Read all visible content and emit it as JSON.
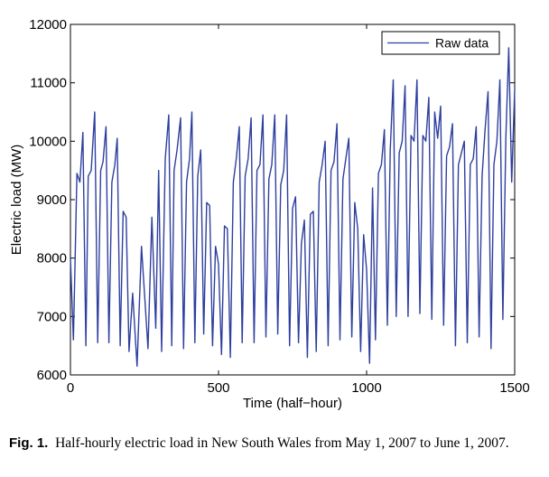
{
  "chart_data": {
    "type": "line",
    "title": "",
    "xlabel": "Time (half−hour)",
    "ylabel": "Electric load (MW)",
    "xlim": [
      0,
      1500
    ],
    "ylim": [
      6000,
      12000
    ],
    "x_ticks": [
      "0",
      "500",
      "1000",
      "1500"
    ],
    "y_ticks": [
      "6000",
      "7000",
      "8000",
      "9000",
      "10000",
      "11000",
      "12000"
    ],
    "grid": false,
    "legend_position": "top-right",
    "series": [
      {
        "name": "Raw data",
        "color": "#2e3f9e",
        "x": [
          0,
          10,
          22,
          32,
          42,
          52,
          60,
          70,
          82,
          92,
          102,
          110,
          120,
          130,
          140,
          150,
          158,
          168,
          178,
          188,
          198,
          210,
          225,
          240,
          250,
          262,
          275,
          288,
          298,
          308,
          320,
          332,
          342,
          350,
          360,
          372,
          382,
          392,
          402,
          410,
          420,
          430,
          440,
          450,
          460,
          470,
          480,
          490,
          500,
          510,
          520,
          530,
          540,
          550,
          560,
          570,
          580,
          590,
          600,
          610,
          620,
          630,
          640,
          650,
          660,
          670,
          680,
          690,
          700,
          710,
          720,
          730,
          740,
          750,
          760,
          770,
          780,
          790,
          800,
          810,
          820,
          830,
          840,
          850,
          860,
          870,
          880,
          890,
          900,
          910,
          920,
          930,
          940,
          950,
          960,
          970,
          980,
          990,
          1000,
          1010,
          1020,
          1030,
          1040,
          1050,
          1060,
          1070,
          1080,
          1090,
          1100,
          1110,
          1120,
          1130,
          1140,
          1150,
          1160,
          1170,
          1180,
          1190,
          1200,
          1210,
          1220,
          1230,
          1240,
          1250,
          1260,
          1270,
          1280,
          1290,
          1300,
          1310,
          1320,
          1330,
          1340,
          1350,
          1360,
          1370,
          1380,
          1390,
          1400,
          1410,
          1420,
          1430,
          1440,
          1450,
          1460,
          1470,
          1480,
          1490,
          1500
        ],
        "values": [
          8000,
          6600,
          9450,
          9300,
          10150,
          6500,
          9400,
          9500,
          10500,
          6550,
          9500,
          9650,
          10250,
          6550,
          9300,
          9600,
          10050,
          6500,
          8800,
          8700,
          6400,
          7400,
          6150,
          8200,
          7400,
          6450,
          8700,
          6800,
          9500,
          6400,
          9700,
          10450,
          6500,
          9500,
          9850,
          10400,
          6450,
          9300,
          9700,
          10500,
          6550,
          9400,
          9850,
          6700,
          8950,
          8900,
          6500,
          8200,
          7900,
          6350,
          8550,
          8500,
          6300,
          9300,
          9700,
          10250,
          6550,
          9400,
          9700,
          10400,
          6550,
          9500,
          9600,
          10450,
          6650,
          9350,
          9600,
          10450,
          6700,
          9250,
          9500,
          10450,
          6500,
          8850,
          9050,
          6550,
          8250,
          8650,
          6300,
          8750,
          8800,
          6400,
          9300,
          9600,
          10000,
          6500,
          9500,
          9650,
          10300,
          6600,
          9350,
          9700,
          10050,
          6650,
          8950,
          8500,
          6400,
          8400,
          7800,
          6200,
          9200,
          6600,
          9450,
          9600,
          10200,
          6850,
          9850,
          11050,
          7000,
          9800,
          10000,
          10950,
          7000,
          10100,
          10000,
          11050,
          7050,
          10100,
          10000,
          10750,
          6950,
          10500,
          10050,
          10600,
          6850,
          9750,
          9900,
          10300,
          6500,
          9600,
          9800,
          10000,
          6550,
          9600,
          9700,
          10250,
          6650,
          9400,
          10200,
          10850,
          6450,
          9600,
          10000,
          11050,
          6950,
          10050,
          11600,
          9300,
          10900
        ]
      }
    ]
  },
  "caption": {
    "label": "Fig. 1.",
    "text": "Half-hourly electric load in New South Wales from May 1, 2007 to June 1, 2007."
  }
}
